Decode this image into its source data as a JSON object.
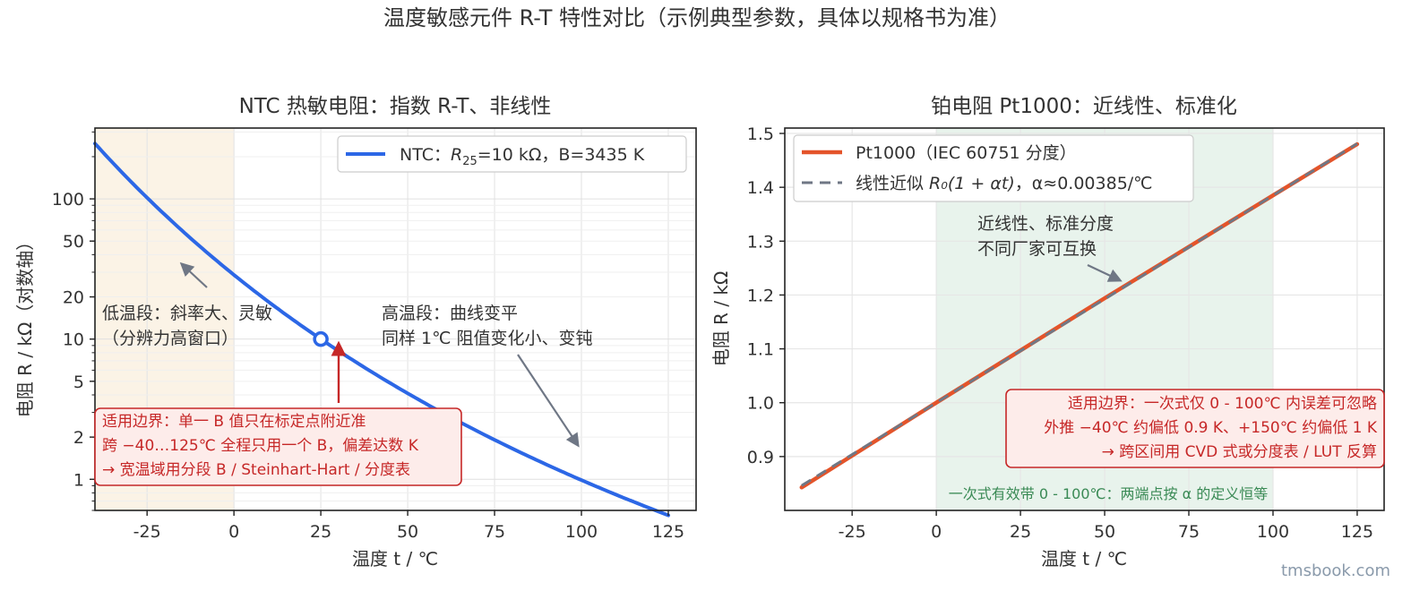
{
  "figure": {
    "suptitle": "温度敏感元件 R-T 特性对比（示例典型参数，具体以规格书为准）",
    "watermark": "tmsbook.com"
  },
  "colors": {
    "ntc_line": "#2c67e6",
    "pt_line": "#e4542a",
    "linear_line": "#6f7785",
    "low_band": "#fbf3e6",
    "green_band": "#e8f3ec",
    "warn_text": "#c62828",
    "warn_fill": "#fdecea",
    "marker_arrow": "#c62828",
    "gray_arrow": "#6f7785"
  },
  "chart_data": [
    {
      "type": "line",
      "title": "NTC 热敏电阻：指数 R-T、非线性",
      "xlabel": "温度 t / ℃",
      "ylabel": "电阻 R / kΩ（对数轴）",
      "xlim": [
        -40,
        133
      ],
      "ylim": [
        0.6,
        320
      ],
      "yscale": "log",
      "xticks": [
        -25,
        0,
        25,
        50,
        75,
        100,
        125
      ],
      "xtick_labels": [
        "-25",
        "0",
        "25",
        "50",
        "75",
        "100",
        "125"
      ],
      "yticks": [
        1,
        2,
        5,
        10,
        20,
        50,
        100
      ],
      "ytick_labels": [
        "1",
        "2",
        "5",
        "10",
        "20",
        "50",
        "100"
      ],
      "grid": true,
      "legend_position": "top-right",
      "series": [
        {
          "name": "NTC：R25=10 kΩ，B=3435 K",
          "legend_main": "NTC：",
          "legend_r": "R",
          "legend_sub": "25",
          "legend_rest": "=10 kΩ，B=3435 K",
          "x": [
            -40,
            -30,
            -20,
            -10,
            0,
            10,
            20,
            25,
            30,
            40,
            50,
            60,
            70,
            80,
            90,
            100,
            110,
            125
          ],
          "y": [
            220,
            122,
            70.5,
            42.2,
            26.1,
            16.6,
            10.9,
            10.0,
            8.13,
            5.45,
            3.74,
            2.63,
            1.89,
            1.38,
            1.03,
            0.78,
            0.6,
            0.5
          ]
        }
      ],
      "marker": {
        "x": 25,
        "y": 10
      },
      "band": {
        "x0": -40,
        "x1": 0
      },
      "annotations": [
        {
          "lines": [
            "低温段：斜率大、灵敏",
            "（分辨力高窗口）"
          ]
        },
        {
          "lines": [
            "高温段：曲线变平",
            "同样 1℃ 阻值变化小、变钝"
          ]
        }
      ],
      "warning": {
        "lines": [
          "适用边界：单一 B 值只在标定点附近准",
          "跨 −40…125℃ 全程只用一个 B，偏差达数 K",
          "→ 宽温域用分段 B / Steinhart-Hart / 分度表"
        ]
      }
    },
    {
      "type": "line",
      "title": "铂电阻 Pt1000：近线性、标准化",
      "xlabel": "温度 t / ℃",
      "ylabel": "电阻 R / kΩ",
      "xlim": [
        -45,
        133
      ],
      "ylim": [
        0.8,
        1.51
      ],
      "yscale": "linear",
      "xticks": [
        -25,
        0,
        25,
        50,
        75,
        100,
        125
      ],
      "xtick_labels": [
        "-25",
        "0",
        "25",
        "50",
        "75",
        "100",
        "125"
      ],
      "yticks": [
        0.9,
        1.0,
        1.1,
        1.2,
        1.3,
        1.4,
        1.5
      ],
      "ytick_labels": [
        "0.9",
        "1.0",
        "1.1",
        "1.2",
        "1.3",
        "1.4",
        "1.5"
      ],
      "grid": true,
      "legend_position": "top-left",
      "series": [
        {
          "name": "Pt1000（IEC 60751 分度）",
          "x": [
            -40,
            0,
            50,
            100,
            125
          ],
          "y": [
            0.8427,
            1.0,
            1.194,
            1.385,
            1.48
          ]
        },
        {
          "name": "线性近似 R0(1+αt)，α≈0.00385/℃",
          "legend_main": "线性近似 ",
          "legend_formula": "R₀(1 + αt)",
          "legend_rest": "，α≈0.00385/℃",
          "x": [
            -40,
            125
          ],
          "y": [
            0.846,
            1.481
          ]
        }
      ],
      "band": {
        "x0": 0,
        "x1": 100
      },
      "band_note": "一次式有效带 0 - 100℃：两端点按 α 的定义恒等",
      "annotations": [
        {
          "lines": [
            "近线性、标准分度",
            "不同厂家可互换"
          ]
        }
      ],
      "warning": {
        "lines": [
          "适用边界：一次式仅 0 - 100℃ 内误差可忽略",
          "外推 −40℃ 约偏低 0.9 K、+150℃ 约偏低 1 K",
          "→ 跨区间用 CVD 式或分度表 / LUT 反算"
        ]
      }
    }
  ]
}
